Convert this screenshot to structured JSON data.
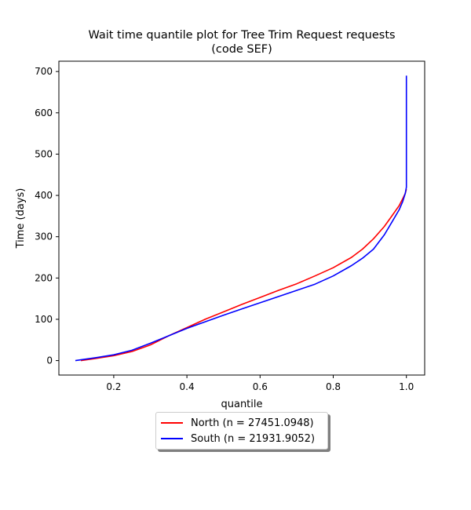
{
  "chart_data": {
    "type": "line",
    "title": [
      "Wait time quantile plot for Tree Trim Request  requests",
      "(code SEF)"
    ],
    "xlabel": "quantile",
    "ylabel": "Time (days)",
    "xlim": [
      0.05,
      1.05
    ],
    "ylim": [
      -35,
      725
    ],
    "xticks": [
      0.2,
      0.4,
      0.6,
      0.8,
      1.0
    ],
    "xtick_labels": [
      "0.2",
      "0.4",
      "0.6",
      "0.8",
      "1.0"
    ],
    "yticks": [
      0,
      100,
      200,
      300,
      400,
      500,
      600,
      700
    ],
    "ytick_labels": [
      "0",
      "100",
      "200",
      "300",
      "400",
      "500",
      "600",
      "700"
    ],
    "grid": false,
    "legend": "lower-center-outside",
    "series": [
      {
        "name": "North (n = 27451.0948)",
        "color": "#ff0000",
        "points": [
          [
            0.11,
            0
          ],
          [
            0.15,
            5
          ],
          [
            0.2,
            12
          ],
          [
            0.25,
            22
          ],
          [
            0.3,
            38
          ],
          [
            0.35,
            60
          ],
          [
            0.4,
            80
          ],
          [
            0.45,
            100
          ],
          [
            0.5,
            118
          ],
          [
            0.55,
            136
          ],
          [
            0.6,
            153
          ],
          [
            0.65,
            170
          ],
          [
            0.7,
            186
          ],
          [
            0.75,
            205
          ],
          [
            0.8,
            225
          ],
          [
            0.85,
            250
          ],
          [
            0.88,
            270
          ],
          [
            0.91,
            295
          ],
          [
            0.94,
            325
          ],
          [
            0.96,
            350
          ],
          [
            0.98,
            375
          ],
          [
            0.99,
            392
          ],
          [
            0.997,
            405
          ],
          [
            1.0,
            415
          ]
        ]
      },
      {
        "name": "South (n = 21931.9052)",
        "color": "#0000ff",
        "points": [
          [
            0.095,
            0
          ],
          [
            0.15,
            7
          ],
          [
            0.2,
            14
          ],
          [
            0.25,
            25
          ],
          [
            0.3,
            42
          ],
          [
            0.35,
            60
          ],
          [
            0.4,
            78
          ],
          [
            0.45,
            94
          ],
          [
            0.5,
            110
          ],
          [
            0.55,
            125
          ],
          [
            0.6,
            140
          ],
          [
            0.65,
            155
          ],
          [
            0.7,
            170
          ],
          [
            0.75,
            185
          ],
          [
            0.8,
            205
          ],
          [
            0.85,
            230
          ],
          [
            0.88,
            248
          ],
          [
            0.91,
            270
          ],
          [
            0.94,
            305
          ],
          [
            0.96,
            335
          ],
          [
            0.98,
            365
          ],
          [
            0.99,
            385
          ],
          [
            0.997,
            405
          ],
          [
            1.0,
            420
          ],
          [
            1.0,
            600
          ],
          [
            1.0,
            690
          ]
        ]
      }
    ]
  }
}
